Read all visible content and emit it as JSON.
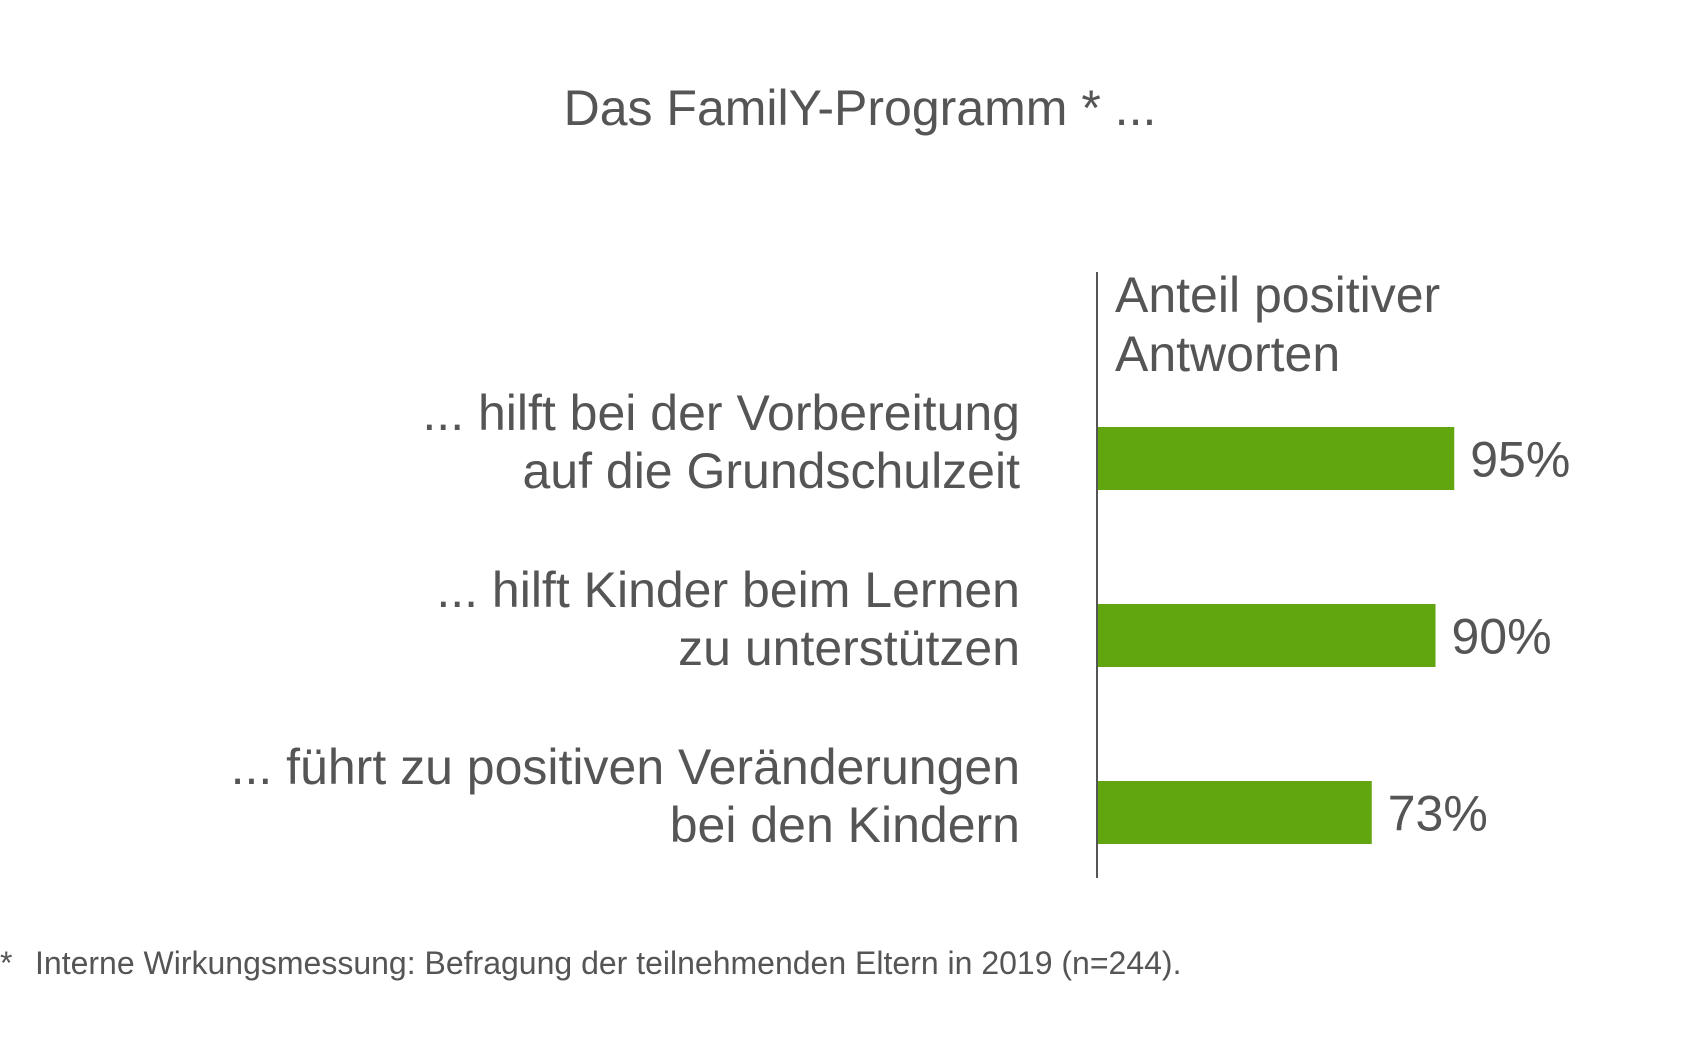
{
  "chart_data": {
    "type": "bar",
    "orientation": "horizontal",
    "title": "Das FamilY-Programm * ...",
    "value_header": [
      "Anteil positiver",
      "Antworten"
    ],
    "categories": [
      [
        "... hilft bei der Vorbereitung",
        "auf die Grundschulzeit"
      ],
      [
        "... hilft Kinder beim Lernen",
        "zu unterstützen"
      ],
      [
        "... führt zu positiven Veränderungen",
        "bei den Kindern"
      ]
    ],
    "values": [
      95,
      90,
      73
    ],
    "value_labels": [
      "95%",
      "90%",
      "73%"
    ],
    "unit": "%",
    "xlim": [
      0,
      100
    ],
    "grid": false,
    "footnote": {
      "marker": "*",
      "text": "Interne Wirkungsmessung: Befragung der teilnehmenden Eltern in 2019 (n=244)."
    },
    "colors": {
      "bar": "#62a60f",
      "text": "#555555",
      "axis": "#555555"
    }
  }
}
